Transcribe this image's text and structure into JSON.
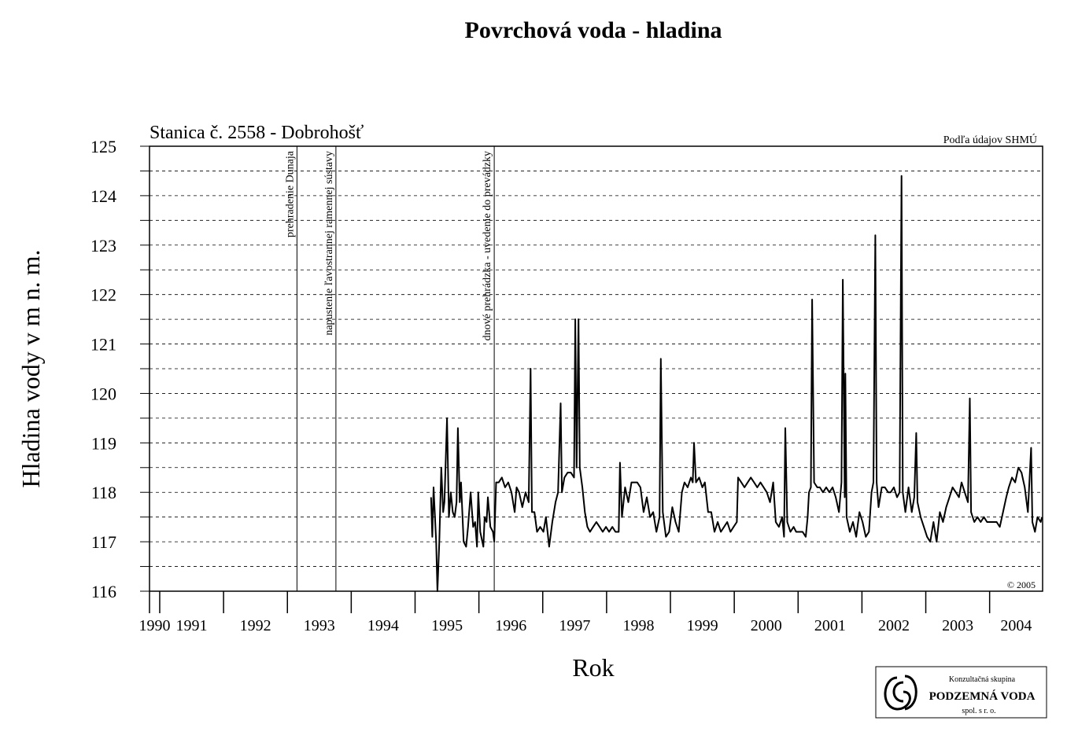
{
  "chart_data": {
    "type": "line",
    "title": "Povrchová voda - hladina",
    "subtitle": "Stanica č. 2558  - Dobrohošť",
    "y_label": "Hladina vody v m n. m.",
    "x_label": "Rok",
    "source": "Podľa údajov SHMÚ",
    "copyright": "© 2005",
    "logo": {
      "line1": "Konzultačná skupina",
      "line2": "PODZEMNÁ VODA",
      "line3": "spol. s r. o."
    },
    "xlim": [
      1990.84,
      2004.83
    ],
    "ylim": [
      116,
      125
    ],
    "xticks": [
      {
        "value": 1990.84,
        "label": "1990"
      },
      1991,
      1992,
      1993,
      1994,
      1995,
      1996,
      1997,
      1998,
      1999,
      2000,
      2001,
      2002,
      2003,
      2004
    ],
    "yticks": [
      116,
      117,
      118,
      119,
      120,
      121,
      122,
      123,
      124,
      125
    ],
    "minor_yticks": [
      116.5,
      117.5,
      118.5,
      119.5,
      120.5,
      121.5,
      122.5,
      123.5,
      124.5
    ],
    "grid": true,
    "annotations": [
      {
        "text": "prehradenie Dunaja",
        "x": 1993.15
      },
      {
        "text": "napustenie ľavostrannej ramennej sústavy",
        "x": 1993.76
      },
      {
        "text": "dnové prehrádzka - uvedenie do prevádzky",
        "x": 1996.24
      }
    ],
    "series": [
      {
        "name": "Dobrohošť",
        "color": "#000000",
        "x": [
          1995.25,
          1995.27,
          1995.29,
          1995.33,
          1995.35,
          1995.38,
          1995.41,
          1995.44,
          1995.46,
          1995.5,
          1995.53,
          1995.56,
          1995.59,
          1995.62,
          1995.65,
          1995.67,
          1995.7,
          1995.72,
          1995.76,
          1995.8,
          1995.83,
          1995.87,
          1995.91,
          1995.94,
          1995.97,
          1995.99,
          1996.02,
          1996.07,
          1996.09,
          1996.12,
          1996.14,
          1996.18,
          1996.22,
          1996.24,
          1996.27,
          1996.31,
          1996.36,
          1996.41,
          1996.46,
          1996.51,
          1996.56,
          1996.59,
          1996.63,
          1996.68,
          1996.73,
          1996.78,
          1996.81,
          1996.83,
          1996.87,
          1996.91,
          1996.96,
          1997.01,
          1997.05,
          1997.1,
          1997.15,
          1997.2,
          1997.24,
          1997.28,
          1997.3,
          1997.34,
          1997.39,
          1997.44,
          1997.49,
          1997.51,
          1997.53,
          1997.56,
          1997.58,
          1997.62,
          1997.66,
          1997.7,
          1997.74,
          1997.79,
          1997.84,
          1997.89,
          1997.94,
          1997.99,
          1998.04,
          1998.09,
          1998.14,
          1998.19,
          1998.21,
          1998.24,
          1998.29,
          1998.34,
          1998.39,
          1998.44,
          1998.48,
          1998.53,
          1998.58,
          1998.63,
          1998.68,
          1998.73,
          1998.78,
          1998.83,
          1998.85,
          1998.88,
          1998.93,
          1998.98,
          1999.03,
          1999.08,
          1999.13,
          1999.18,
          1999.22,
          1999.27,
          1999.32,
          1999.35,
          1999.37,
          1999.4,
          1999.45,
          1999.5,
          1999.54,
          1999.59,
          1999.64,
          1999.69,
          1999.74,
          1999.79,
          1999.84,
          1999.89,
          1999.94,
          1999.99,
          2000.04,
          2000.06,
          2000.11,
          2000.16,
          2000.21,
          2000.26,
          2000.31,
          2000.36,
          2000.41,
          2000.46,
          2000.51,
          2000.56,
          2000.61,
          2000.65,
          2000.7,
          2000.75,
          2000.78,
          2000.8,
          2000.83,
          2000.88,
          2000.93,
          2000.97,
          2001.02,
          2001.07,
          2001.12,
          2001.15,
          2001.17,
          2001.2,
          2001.22,
          2001.25,
          2001.3,
          2001.34,
          2001.39,
          2001.44,
          2001.49,
          2001.54,
          2001.59,
          2001.64,
          2001.68,
          2001.7,
          2001.73,
          2001.74,
          2001.76,
          2001.81,
          2001.86,
          2001.91,
          2001.96,
          2002.01,
          2002.06,
          2002.11,
          2002.15,
          2002.18,
          2002.21,
          2002.23,
          2002.26,
          2002.31,
          2002.36,
          2002.41,
          2002.45,
          2002.5,
          2002.55,
          2002.59,
          2002.62,
          2002.64,
          2002.68,
          2002.73,
          2002.78,
          2002.82,
          2002.85,
          2002.87,
          2002.92,
          2002.97,
          2003.02,
          2003.07,
          2003.12,
          2003.17,
          2003.22,
          2003.27,
          2003.32,
          2003.37,
          2003.42,
          2003.47,
          2003.52,
          2003.56,
          2003.61,
          2003.66,
          2003.69,
          2003.71,
          2003.76,
          2003.81,
          2003.86,
          2003.91,
          2003.96,
          2004.01,
          2004.06,
          2004.11,
          2004.16,
          2004.21,
          2004.26,
          2004.3,
          2004.35,
          2004.4,
          2004.45,
          2004.5,
          2004.55,
          2004.6,
          2004.65,
          2004.67,
          2004.71,
          2004.75,
          2004.8,
          2004.82
        ],
        "values": [
          117.9,
          117.1,
          118.1,
          117.0,
          116.0,
          117.0,
          118.5,
          117.6,
          117.8,
          119.5,
          117.5,
          118.0,
          117.6,
          117.5,
          117.8,
          119.3,
          117.8,
          118.2,
          117.0,
          116.9,
          117.3,
          118.0,
          117.3,
          117.4,
          116.9,
          118.0,
          117.2,
          116.9,
          117.5,
          117.4,
          117.9,
          117.3,
          117.2,
          117.0,
          118.2,
          118.2,
          118.3,
          118.1,
          118.2,
          118.0,
          117.6,
          118.1,
          118.0,
          117.7,
          118.0,
          117.8,
          120.5,
          117.6,
          117.6,
          117.2,
          117.3,
          117.2,
          117.5,
          116.9,
          117.4,
          117.8,
          118.0,
          119.8,
          118.0,
          118.3,
          118.4,
          118.4,
          118.3,
          121.5,
          118.5,
          121.5,
          118.5,
          118.1,
          117.6,
          117.3,
          117.2,
          117.3,
          117.4,
          117.3,
          117.2,
          117.3,
          117.2,
          117.3,
          117.2,
          117.2,
          118.6,
          117.5,
          118.1,
          117.8,
          118.2,
          118.2,
          118.2,
          118.1,
          117.6,
          117.9,
          117.5,
          117.6,
          117.2,
          117.5,
          120.7,
          117.6,
          117.1,
          117.2,
          117.7,
          117.4,
          117.2,
          118.0,
          118.2,
          118.1,
          118.3,
          118.2,
          119.0,
          118.2,
          118.3,
          118.1,
          118.2,
          117.6,
          117.6,
          117.2,
          117.4,
          117.2,
          117.3,
          117.4,
          117.2,
          117.3,
          117.4,
          118.3,
          118.2,
          118.1,
          118.2,
          118.3,
          118.2,
          118.1,
          118.2,
          118.1,
          118.0,
          117.8,
          118.2,
          117.4,
          117.3,
          117.5,
          117.1,
          119.3,
          117.4,
          117.2,
          117.3,
          117.2,
          117.2,
          117.2,
          117.1,
          117.5,
          118.0,
          118.1,
          121.9,
          118.2,
          118.1,
          118.1,
          118.0,
          118.1,
          118.0,
          118.1,
          117.9,
          117.6,
          118.2,
          122.3,
          117.9,
          120.4,
          117.5,
          117.2,
          117.4,
          117.1,
          117.6,
          117.4,
          117.1,
          117.2,
          118.0,
          118.2,
          123.2,
          118.2,
          117.7,
          118.1,
          118.1,
          118.0,
          118.0,
          118.1,
          117.9,
          118.0,
          124.4,
          118.0,
          117.6,
          118.1,
          117.6,
          117.9,
          119.2,
          117.8,
          117.5,
          117.3,
          117.1,
          117.0,
          117.4,
          117.0,
          117.6,
          117.4,
          117.7,
          117.9,
          118.1,
          118.0,
          117.9,
          118.2,
          118.0,
          117.8,
          119.9,
          117.6,
          117.4,
          117.5,
          117.4,
          117.5,
          117.4,
          117.4,
          117.4,
          117.4,
          117.3,
          117.6,
          117.9,
          118.1,
          118.3,
          118.2,
          118.5,
          118.4,
          118.1,
          117.6,
          118.9,
          117.4,
          117.2,
          117.5,
          117.4,
          117.5
        ]
      }
    ]
  }
}
